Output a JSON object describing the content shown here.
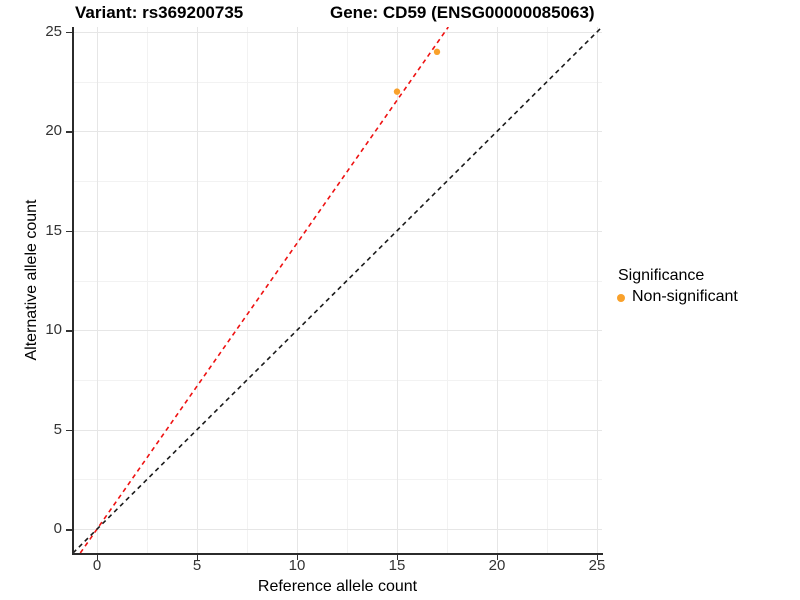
{
  "chart_data": {
    "type": "scatter",
    "title_left": "Variant: rs369200735",
    "title_right": "Gene: CD59 (ENSG00000085063)",
    "xlabel": "Reference allele count",
    "ylabel": "Alternative allele count",
    "xlim": [
      -1.2,
      25.25
    ],
    "ylim": [
      -1.2,
      25.25
    ],
    "x_major_ticks": [
      0,
      5,
      10,
      15,
      20,
      25
    ],
    "y_major_ticks": [
      0,
      5,
      10,
      15,
      20,
      25
    ],
    "x_minor_ticks": [
      2.5,
      7.5,
      12.5,
      17.5,
      22.5
    ],
    "y_minor_ticks": [
      2.5,
      7.5,
      12.5,
      17.5,
      22.5
    ],
    "grid": true,
    "legend_position": "right",
    "series": [
      {
        "name": "Non-significant",
        "marker": "circle",
        "color": "#F9A12B",
        "points": [
          {
            "x": 15,
            "y": 22
          },
          {
            "x": 17,
            "y": 24
          }
        ]
      }
    ],
    "lines": [
      {
        "name": "fitted-allele-ratio-line",
        "style": "dashed",
        "color": "#EE1111",
        "slope": 1.4375,
        "intercept": 0
      },
      {
        "name": "identity-line",
        "style": "dashed",
        "color": "#1A1A1A",
        "slope": 1,
        "intercept": 0
      }
    ],
    "legend": {
      "title": "Significance",
      "items": [
        {
          "label": "Non-significant",
          "color": "#F9A12B",
          "marker": "circle"
        }
      ]
    }
  },
  "colors": {
    "background": "#FFFFFF",
    "grid_major": "#E6E6E6",
    "grid_minor": "#F2F2F2",
    "axis_line": "#2B2B2B",
    "tick_text": "#333333",
    "point_orange": "#F9A12B",
    "line_red": "#EE1111",
    "line_black": "#1A1A1A"
  }
}
